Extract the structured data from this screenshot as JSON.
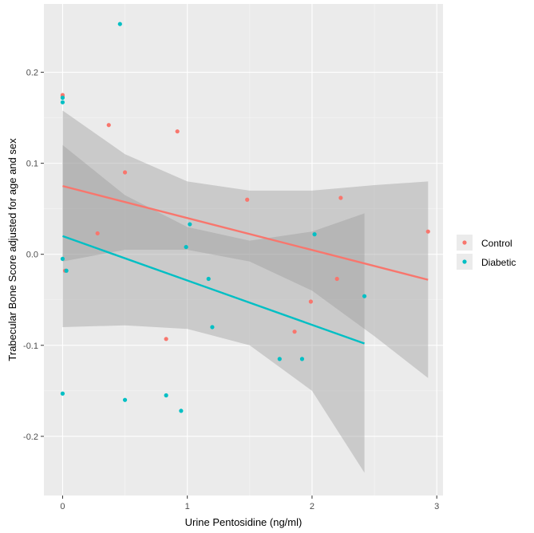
{
  "chart_data": {
    "type": "scatter",
    "xlabel": "Urine Pentosidine (ng/ml)",
    "ylabel": "Trabecular Bone Score adjusted for age and sex",
    "xlim": [
      -0.15,
      3.05
    ],
    "ylim": [
      -0.265,
      0.275
    ],
    "x_ticks": [
      0,
      1,
      2,
      3
    ],
    "x_tick_labels": [
      "0",
      "1",
      "2",
      "3"
    ],
    "y_ticks": [
      -0.2,
      -0.1,
      0.0,
      0.1,
      0.2
    ],
    "y_tick_labels": [
      "-0.2",
      "-0.1",
      "0.0",
      "0.1",
      "0.2"
    ],
    "grid": true,
    "legend_position": "right",
    "series": [
      {
        "name": "Control",
        "color": "#F8766D",
        "points": [
          [
            0.0,
            0.175
          ],
          [
            0.0,
            0.173
          ],
          [
            0.02,
            -0.018
          ],
          [
            0.28,
            0.023
          ],
          [
            0.37,
            0.142
          ],
          [
            0.5,
            0.09
          ],
          [
            0.83,
            -0.093
          ],
          [
            0.92,
            0.135
          ],
          [
            1.48,
            0.06
          ],
          [
            1.86,
            -0.085
          ],
          [
            1.99,
            -0.052
          ],
          [
            2.2,
            -0.027
          ],
          [
            2.23,
            0.062
          ],
          [
            2.93,
            0.025
          ]
        ],
        "fit": {
          "x": [
            0.0,
            2.93
          ],
          "y": [
            0.075,
            -0.028
          ]
        },
        "ci_band": {
          "x": [
            0.0,
            0.5,
            1.0,
            1.5,
            2.0,
            2.5,
            2.93
          ],
          "upper": [
            0.158,
            0.11,
            0.08,
            0.07,
            0.07,
            0.076,
            0.08
          ],
          "lower": [
            -0.008,
            0.005,
            0.005,
            -0.008,
            -0.04,
            -0.09,
            -0.136
          ]
        }
      },
      {
        "name": "Diabetic",
        "color": "#00BFC4",
        "points": [
          [
            0.0,
            0.172
          ],
          [
            0.0,
            0.167
          ],
          [
            0.0,
            -0.005
          ],
          [
            0.03,
            -0.018
          ],
          [
            0.0,
            -0.153
          ],
          [
            0.46,
            0.253
          ],
          [
            0.5,
            -0.16
          ],
          [
            0.83,
            -0.155
          ],
          [
            0.95,
            -0.172
          ],
          [
            0.99,
            0.008
          ],
          [
            1.02,
            0.033
          ],
          [
            1.17,
            -0.027
          ],
          [
            1.2,
            -0.08
          ],
          [
            1.74,
            -0.115
          ],
          [
            1.92,
            -0.115
          ],
          [
            2.02,
            0.022
          ],
          [
            2.42,
            -0.046
          ]
        ],
        "fit": {
          "x": [
            0.0,
            2.42
          ],
          "y": [
            0.02,
            -0.098
          ]
        },
        "ci_band": {
          "x": [
            0.0,
            0.5,
            1.0,
            1.5,
            2.0,
            2.42
          ],
          "upper": [
            0.12,
            0.065,
            0.03,
            0.015,
            0.025,
            0.045
          ],
          "lower": [
            -0.08,
            -0.078,
            -0.082,
            -0.1,
            -0.15,
            -0.24
          ]
        }
      }
    ]
  }
}
